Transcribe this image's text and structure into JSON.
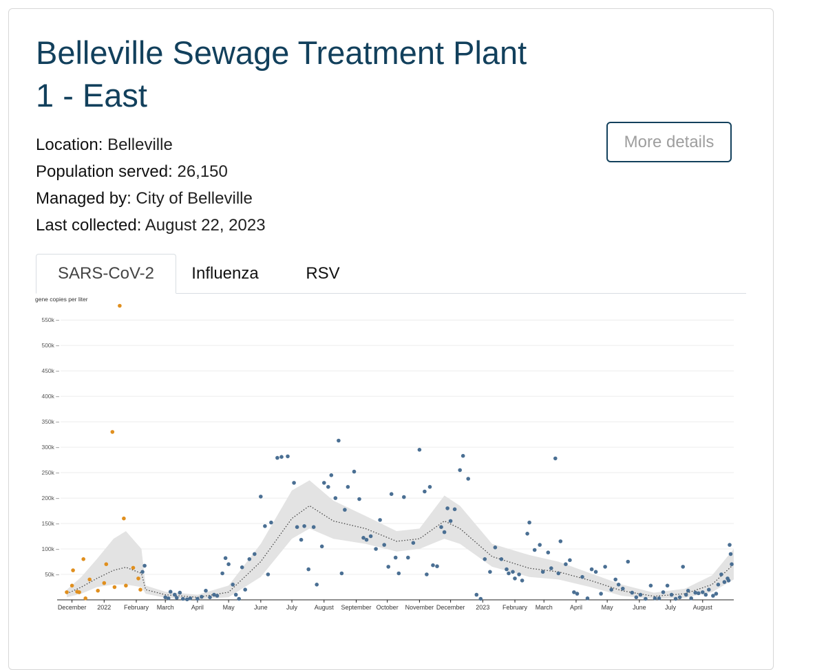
{
  "site": {
    "title": "Belleville Sewage Treatment Plant 1 - East",
    "details_button": "More details",
    "meta": [
      {
        "key": "Location:",
        "value": " Belleville"
      },
      {
        "key": "Population served:",
        "value": " 26,150"
      },
      {
        "key": "Managed by:",
        "value": " City of Belleville"
      },
      {
        "key": "Last collected:",
        "value": " August 22, 2023"
      }
    ]
  },
  "tabs": [
    {
      "label": "SARS-CoV-2",
      "active": true
    },
    {
      "label": "Influenza",
      "active": false
    },
    {
      "label": "RSV",
      "active": false
    }
  ],
  "colors": {
    "title": "#12405c",
    "point_recent": "#4a6f93",
    "point_early": "#e08f1e",
    "band": "#e3e3e3",
    "trend": "#444444"
  },
  "chart_data": {
    "type": "scatter",
    "title": "",
    "ylabel": "gene copies per liter",
    "xlabel": "",
    "ylim": [
      0,
      580000
    ],
    "xlim": [
      "2021-11-20",
      "2023-08-31"
    ],
    "grid": true,
    "y_ticks": [
      {
        "v": 50000,
        "label": "50k"
      },
      {
        "v": 100000,
        "label": "100k"
      },
      {
        "v": 150000,
        "label": "150k"
      },
      {
        "v": 200000,
        "label": "200k"
      },
      {
        "v": 250000,
        "label": "250k"
      },
      {
        "v": 300000,
        "label": "300k"
      },
      {
        "v": 350000,
        "label": "350k"
      },
      {
        "v": 400000,
        "label": "400k"
      },
      {
        "v": 450000,
        "label": "450k"
      },
      {
        "v": 500000,
        "label": "500k"
      },
      {
        "v": 550000,
        "label": "550k"
      }
    ],
    "x_ticks": [
      {
        "date": "2021-12-01",
        "label": "December"
      },
      {
        "date": "2022-01-01",
        "label": "2022"
      },
      {
        "date": "2022-02-01",
        "label": "February"
      },
      {
        "date": "2022-03-01",
        "label": "March"
      },
      {
        "date": "2022-04-01",
        "label": "April"
      },
      {
        "date": "2022-05-01",
        "label": "May"
      },
      {
        "date": "2022-06-01",
        "label": "June"
      },
      {
        "date": "2022-07-01",
        "label": "July"
      },
      {
        "date": "2022-08-01",
        "label": "August"
      },
      {
        "date": "2022-09-01",
        "label": "September"
      },
      {
        "date": "2022-10-01",
        "label": "October"
      },
      {
        "date": "2022-11-01",
        "label": "November"
      },
      {
        "date": "2022-12-01",
        "label": "December"
      },
      {
        "date": "2023-01-01",
        "label": "2023"
      },
      {
        "date": "2023-02-01",
        "label": "February"
      },
      {
        "date": "2023-03-01",
        "label": "March"
      },
      {
        "date": "2023-04-01",
        "label": "April"
      },
      {
        "date": "2023-05-01",
        "label": "May"
      },
      {
        "date": "2023-06-01",
        "label": "June"
      },
      {
        "date": "2023-07-01",
        "label": "July"
      },
      {
        "date": "2023-08-01",
        "label": "August"
      }
    ],
    "series": [
      {
        "color_key": "point_early",
        "points": [
          [
            "2021-11-26",
            15000
          ],
          [
            "2021-12-01",
            28000
          ],
          [
            "2021-12-02",
            58000
          ],
          [
            "2021-12-06",
            16000
          ],
          [
            "2021-12-08",
            15000
          ],
          [
            "2021-12-12",
            80000
          ],
          [
            "2021-12-14",
            3000
          ],
          [
            "2021-12-18",
            40000
          ],
          [
            "2021-12-26",
            18000
          ],
          [
            "2022-01-01",
            33000
          ],
          [
            "2022-01-03",
            70000
          ],
          [
            "2022-01-09",
            330000
          ],
          [
            "2022-01-11",
            25000
          ],
          [
            "2022-01-16",
            578000
          ],
          [
            "2022-01-20",
            160000
          ],
          [
            "2022-01-22",
            28000
          ],
          [
            "2022-01-29",
            63000
          ],
          [
            "2022-02-03",
            42000
          ],
          [
            "2022-02-05",
            20000
          ]
        ]
      },
      {
        "color_key": "point_recent",
        "points": [
          [
            "2022-02-07",
            55000
          ],
          [
            "2022-02-09",
            67000
          ],
          [
            "2022-03-01",
            5000
          ],
          [
            "2022-03-04",
            3000
          ],
          [
            "2022-03-06",
            16000
          ],
          [
            "2022-03-10",
            10000
          ],
          [
            "2022-03-12",
            4000
          ],
          [
            "2022-03-15",
            14000
          ],
          [
            "2022-03-18",
            2000
          ],
          [
            "2022-03-22",
            1000
          ],
          [
            "2022-03-25",
            3000
          ],
          [
            "2022-04-01",
            2000
          ],
          [
            "2022-04-05",
            6000
          ],
          [
            "2022-04-09",
            18000
          ],
          [
            "2022-04-13",
            5000
          ],
          [
            "2022-04-17",
            10000
          ],
          [
            "2022-04-20",
            8000
          ],
          [
            "2022-04-25",
            52000
          ],
          [
            "2022-04-28",
            82000
          ],
          [
            "2022-05-01",
            70000
          ],
          [
            "2022-05-05",
            30000
          ],
          [
            "2022-05-08",
            10000
          ],
          [
            "2022-05-11",
            2000
          ],
          [
            "2022-05-14",
            64000
          ],
          [
            "2022-05-17",
            20000
          ],
          [
            "2022-05-21",
            80000
          ],
          [
            "2022-05-26",
            90000
          ],
          [
            "2022-06-01",
            203000
          ],
          [
            "2022-06-05",
            145000
          ],
          [
            "2022-06-08",
            50000
          ],
          [
            "2022-06-11",
            152000
          ],
          [
            "2022-06-17",
            279000
          ],
          [
            "2022-06-21",
            281000
          ],
          [
            "2022-06-27",
            282000
          ],
          [
            "2022-07-03",
            230000
          ],
          [
            "2022-07-06",
            143000
          ],
          [
            "2022-07-10",
            118000
          ],
          [
            "2022-07-13",
            145000
          ],
          [
            "2022-07-17",
            60000
          ],
          [
            "2022-07-22",
            143000
          ],
          [
            "2022-07-25",
            30000
          ],
          [
            "2022-07-30",
            105000
          ],
          [
            "2022-08-01",
            230000
          ],
          [
            "2022-08-05",
            222000
          ],
          [
            "2022-08-08",
            245000
          ],
          [
            "2022-08-12",
            200000
          ],
          [
            "2022-08-15",
            313000
          ],
          [
            "2022-08-18",
            52000
          ],
          [
            "2022-08-21",
            177000
          ],
          [
            "2022-08-24",
            222000
          ],
          [
            "2022-08-30",
            252000
          ],
          [
            "2022-09-04",
            198000
          ],
          [
            "2022-09-08",
            122000
          ],
          [
            "2022-09-11",
            118000
          ],
          [
            "2022-09-15",
            125000
          ],
          [
            "2022-09-20",
            100000
          ],
          [
            "2022-09-24",
            157000
          ],
          [
            "2022-09-28",
            108000
          ],
          [
            "2022-10-02",
            65000
          ],
          [
            "2022-10-05",
            208000
          ],
          [
            "2022-10-09",
            83000
          ],
          [
            "2022-10-12",
            52000
          ],
          [
            "2022-10-17",
            202000
          ],
          [
            "2022-10-21",
            83000
          ],
          [
            "2022-10-26",
            112000
          ],
          [
            "2022-11-01",
            295000
          ],
          [
            "2022-11-06",
            213000
          ],
          [
            "2022-11-08",
            50000
          ],
          [
            "2022-11-11",
            222000
          ],
          [
            "2022-11-14",
            68000
          ],
          [
            "2022-11-18",
            66000
          ],
          [
            "2022-11-22",
            143000
          ],
          [
            "2022-11-25",
            133000
          ],
          [
            "2022-11-28",
            180000
          ],
          [
            "2022-12-01",
            155000
          ],
          [
            "2022-12-05",
            178000
          ],
          [
            "2022-12-10",
            255000
          ],
          [
            "2022-12-13",
            283000
          ],
          [
            "2022-12-18",
            238000
          ],
          [
            "2022-12-26",
            10000
          ],
          [
            "2022-12-30",
            2000
          ],
          [
            "2023-01-03",
            80000
          ],
          [
            "2023-01-08",
            55000
          ],
          [
            "2023-01-13",
            103000
          ],
          [
            "2023-01-19",
            80000
          ],
          [
            "2023-01-24",
            60000
          ],
          [
            "2023-01-26",
            52000
          ],
          [
            "2023-01-30",
            55000
          ],
          [
            "2023-02-01",
            42000
          ],
          [
            "2023-02-05",
            50000
          ],
          [
            "2023-02-08",
            38000
          ],
          [
            "2023-02-13",
            130000
          ],
          [
            "2023-02-15",
            152000
          ],
          [
            "2023-02-20",
            98000
          ],
          [
            "2023-02-25",
            108000
          ],
          [
            "2023-02-28",
            55000
          ],
          [
            "2023-03-05",
            93000
          ],
          [
            "2023-03-08",
            62000
          ],
          [
            "2023-03-12",
            278000
          ],
          [
            "2023-03-15",
            52000
          ],
          [
            "2023-03-17",
            115000
          ],
          [
            "2023-03-22",
            70000
          ],
          [
            "2023-03-26",
            78000
          ],
          [
            "2023-03-30",
            15000
          ],
          [
            "2023-04-02",
            12000
          ],
          [
            "2023-04-07",
            45000
          ],
          [
            "2023-04-12",
            3000
          ],
          [
            "2023-04-16",
            60000
          ],
          [
            "2023-04-20",
            55000
          ],
          [
            "2023-04-25",
            12000
          ],
          [
            "2023-04-29",
            65000
          ],
          [
            "2023-05-05",
            20000
          ],
          [
            "2023-05-09",
            40000
          ],
          [
            "2023-05-12",
            30000
          ],
          [
            "2023-05-16",
            22000
          ],
          [
            "2023-05-21",
            75000
          ],
          [
            "2023-05-25",
            14000
          ],
          [
            "2023-05-29",
            5000
          ],
          [
            "2023-06-02",
            10000
          ],
          [
            "2023-06-07",
            2000
          ],
          [
            "2023-06-12",
            28000
          ],
          [
            "2023-06-16",
            3000
          ],
          [
            "2023-06-20",
            3000
          ],
          [
            "2023-06-24",
            15000
          ],
          [
            "2023-06-28",
            28000
          ],
          [
            "2023-07-02",
            10000
          ],
          [
            "2023-07-06",
            2000
          ],
          [
            "2023-07-10",
            5000
          ],
          [
            "2023-07-13",
            65000
          ],
          [
            "2023-07-16",
            10000
          ],
          [
            "2023-07-18",
            18000
          ],
          [
            "2023-07-21",
            3000
          ],
          [
            "2023-07-25",
            14000
          ],
          [
            "2023-07-28",
            13000
          ],
          [
            "2023-08-01",
            15000
          ],
          [
            "2023-08-04",
            10000
          ],
          [
            "2023-08-07",
            20000
          ],
          [
            "2023-08-11",
            8000
          ],
          [
            "2023-08-14",
            12000
          ],
          [
            "2023-08-16",
            30000
          ],
          [
            "2023-08-19",
            50000
          ],
          [
            "2023-08-22",
            35000
          ],
          [
            "2023-08-25",
            42000
          ],
          [
            "2023-08-26",
            38000
          ],
          [
            "2023-08-27",
            108000
          ],
          [
            "2023-08-28",
            90000
          ],
          [
            "2023-08-29",
            70000
          ]
        ]
      }
    ],
    "trend": [
      {
        "date": "2021-11-26",
        "y": 12000,
        "lo": 5000,
        "hi": 20000
      },
      {
        "date": "2021-12-10",
        "y": 25000,
        "lo": 12000,
        "hi": 45000
      },
      {
        "date": "2021-12-25",
        "y": 42000,
        "lo": 25000,
        "hi": 80000
      },
      {
        "date": "2022-01-10",
        "y": 58000,
        "lo": 30000,
        "hi": 120000
      },
      {
        "date": "2022-01-22",
        "y": 64000,
        "lo": 30000,
        "hi": 135000
      },
      {
        "date": "2022-02-06",
        "y": 52000,
        "lo": 25000,
        "hi": 100000
      },
      {
        "date": "2022-02-10",
        "y": 20000,
        "lo": 12000,
        "hi": 28000
      },
      {
        "date": "2022-03-01",
        "y": 10000,
        "lo": 4000,
        "hi": 16000
      },
      {
        "date": "2022-04-01",
        "y": 5000,
        "lo": 1000,
        "hi": 10000
      },
      {
        "date": "2022-05-01",
        "y": 15000,
        "lo": 5000,
        "hi": 28000
      },
      {
        "date": "2022-06-01",
        "y": 75000,
        "lo": 45000,
        "hi": 110000
      },
      {
        "date": "2022-07-01",
        "y": 160000,
        "lo": 120000,
        "hi": 215000
      },
      {
        "date": "2022-07-18",
        "y": 185000,
        "lo": 140000,
        "hi": 235000
      },
      {
        "date": "2022-08-10",
        "y": 155000,
        "lo": 120000,
        "hi": 195000
      },
      {
        "date": "2022-09-10",
        "y": 140000,
        "lo": 110000,
        "hi": 165000
      },
      {
        "date": "2022-10-10",
        "y": 115000,
        "lo": 95000,
        "hi": 135000
      },
      {
        "date": "2022-11-01",
        "y": 120000,
        "lo": 100000,
        "hi": 140000
      },
      {
        "date": "2022-11-25",
        "y": 155000,
        "lo": 120000,
        "hi": 205000
      },
      {
        "date": "2022-12-10",
        "y": 140000,
        "lo": 110000,
        "hi": 185000
      },
      {
        "date": "2023-01-10",
        "y": 85000,
        "lo": 65000,
        "hi": 110000
      },
      {
        "date": "2023-02-15",
        "y": 62000,
        "lo": 45000,
        "hi": 88000
      },
      {
        "date": "2023-03-15",
        "y": 55000,
        "lo": 40000,
        "hi": 75000
      },
      {
        "date": "2023-04-15",
        "y": 38000,
        "lo": 25000,
        "hi": 52000
      },
      {
        "date": "2023-05-15",
        "y": 18000,
        "lo": 8000,
        "hi": 30000
      },
      {
        "date": "2023-06-15",
        "y": 7000,
        "lo": 2000,
        "hi": 14000
      },
      {
        "date": "2023-07-15",
        "y": 12000,
        "lo": 4000,
        "hi": 22000
      },
      {
        "date": "2023-08-10",
        "y": 30000,
        "lo": 15000,
        "hi": 48000
      },
      {
        "date": "2023-08-31",
        "y": 70000,
        "lo": 40000,
        "hi": 100000
      }
    ]
  }
}
